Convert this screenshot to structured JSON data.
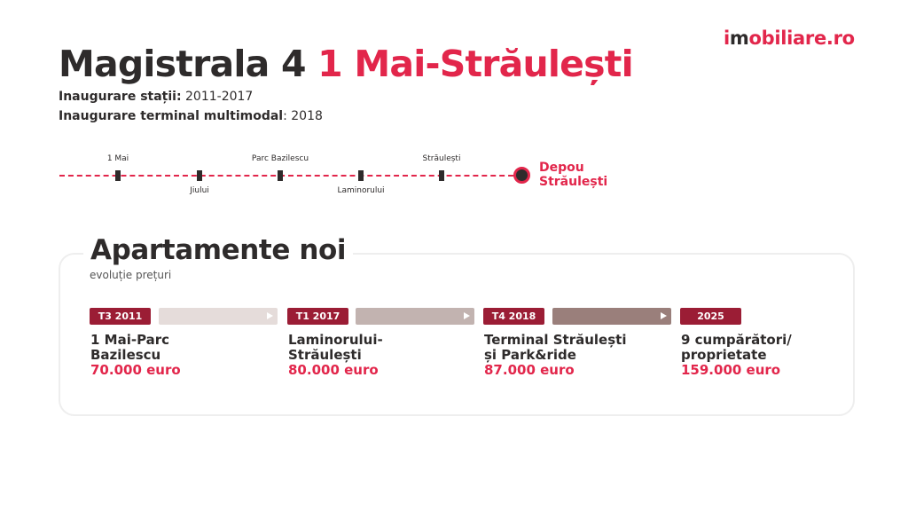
{
  "brand": {
    "logo_prefix": "i",
    "logo_m": "m",
    "logo_suffix": "obiliare.ro",
    "accent_color": "#e2264b"
  },
  "header": {
    "title_main": "Magistrala 4",
    "title_route": "1 Mai-Străulești",
    "info1_label": "Inaugurare stații:",
    "info1_value": " 2011-2017",
    "info2_label": "Inaugurare terminal multimodal",
    "info2_value": ": 2018"
  },
  "metro_line": {
    "stations": [
      "1 Mai",
      "Jiului",
      "Parc Bazilescu",
      "Laminorului",
      "Străulești"
    ],
    "depot_line1": "Depou",
    "depot_line2": "Străulești"
  },
  "section": {
    "title": "Apartamente noi",
    "subtitle": "evoluție prețuri",
    "periods": [
      {
        "badge": "T3 2011",
        "badge_color": "#9b1d35",
        "bar_color": "#e5dcda",
        "line1": "1 Mai-Parc",
        "line2": "Bazilescu",
        "price": "70.000 euro"
      },
      {
        "badge": "T1 2017",
        "badge_color": "#9b1d35",
        "bar_color": "#c2b3b0",
        "line1": "Laminorului-",
        "line2": "Străulești",
        "price": "80.000 euro"
      },
      {
        "badge": "T4 2018",
        "badge_color": "#9b1d35",
        "bar_color": "#9a7f7b",
        "line1": "Terminal Străulești",
        "line2": "și Park&ride",
        "price": "87.000 euro"
      },
      {
        "badge": "2025",
        "badge_color": "#9b1d35",
        "line1": "9 cumpărători/",
        "line2": "proprietate",
        "price": "159.000 euro"
      }
    ]
  }
}
